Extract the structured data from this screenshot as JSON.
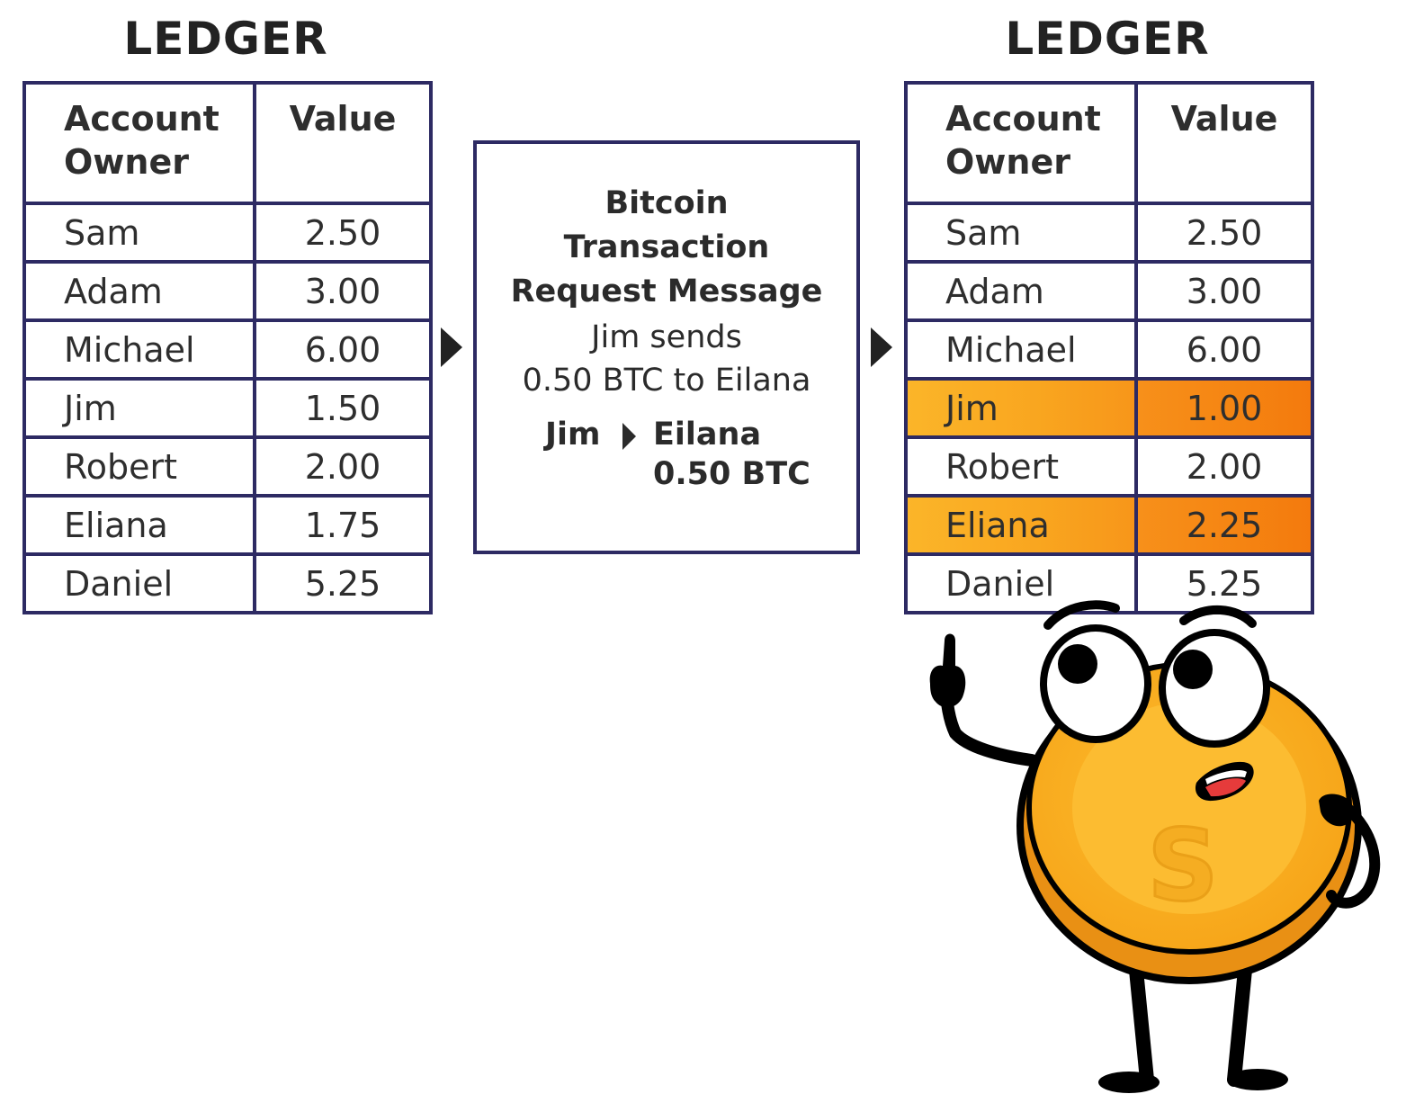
{
  "left_ledger": {
    "title": "LEDGER",
    "header": {
      "owner": "Account\nOwner",
      "value": "Value"
    },
    "rows": [
      {
        "owner": "Sam",
        "value": "2.50"
      },
      {
        "owner": "Adam",
        "value": "3.00"
      },
      {
        "owner": "Michael",
        "value": "6.00"
      },
      {
        "owner": "Jim",
        "value": "1.50"
      },
      {
        "owner": "Robert",
        "value": "2.00"
      },
      {
        "owner": "Eliana",
        "value": "1.75"
      },
      {
        "owner": "Daniel",
        "value": "5.25"
      }
    ]
  },
  "message": {
    "title_lines": [
      "Bitcoin",
      "Transaction",
      "Request Message"
    ],
    "desc_lines": [
      "Jim sends",
      "0.50 BTC to Eilana"
    ],
    "from": "Jim",
    "to": "Eilana",
    "amount": "0.50 BTC"
  },
  "right_ledger": {
    "title": "LEDGER",
    "header": {
      "owner": "Account\nOwner",
      "value": "Value"
    },
    "rows": [
      {
        "owner": "Sam",
        "value": "2.50"
      },
      {
        "owner": "Adam",
        "value": "3.00"
      },
      {
        "owner": "Michael",
        "value": "6.00"
      },
      {
        "owner": "Jim",
        "value": "1.00"
      },
      {
        "owner": "Robert",
        "value": "2.00"
      },
      {
        "owner": "Eliana",
        "value": "2.25"
      },
      {
        "owner": "Daniel",
        "value": "5.25"
      }
    ]
  },
  "colors": {
    "table_border": "#2d2a63",
    "highlight_owner": "#fbb529",
    "highlight_value": "#f58412",
    "coin": "#f9ab1c"
  },
  "mascot": {
    "icon": "coin-mascot",
    "emblem": "S"
  }
}
